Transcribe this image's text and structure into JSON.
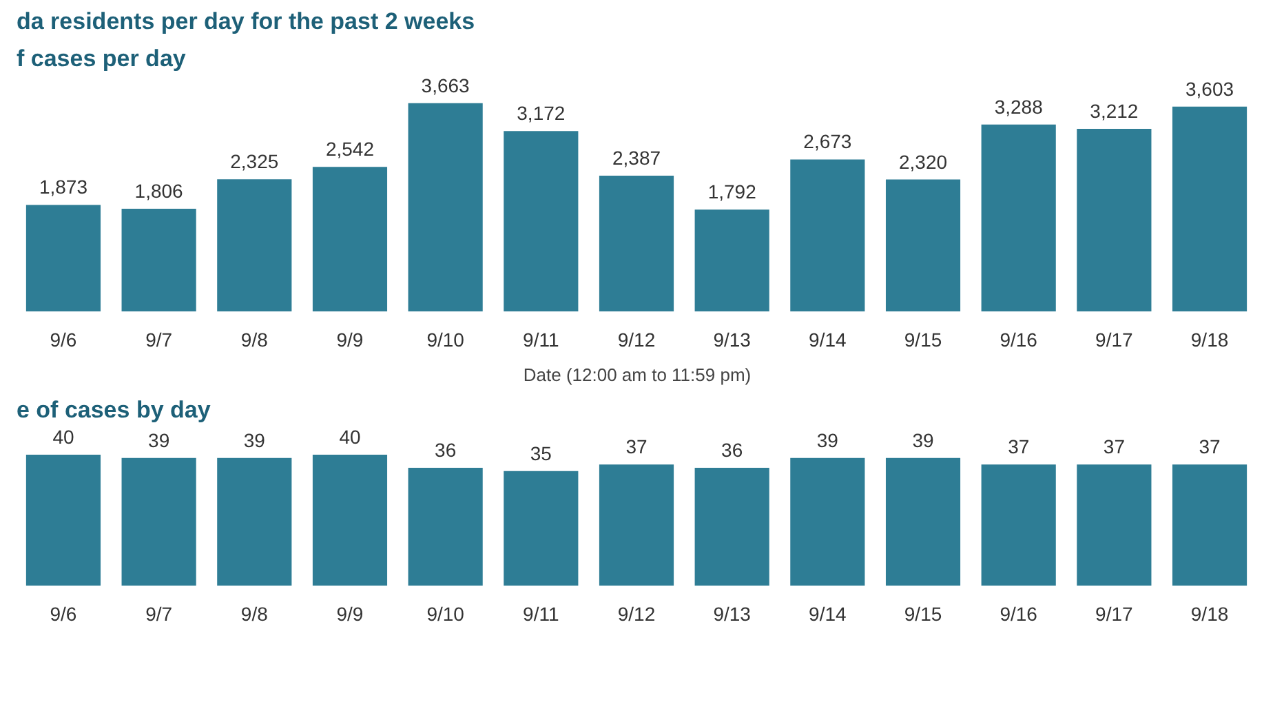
{
  "chart_data": [
    {
      "type": "bar",
      "title": "da residents per day for the past 2 weeks",
      "subtitle": "f cases per day",
      "xlabel": "Date (12:00 am to 11:59 pm)",
      "categories": [
        "9/6",
        "9/7",
        "9/8",
        "9/9",
        "9/10",
        "9/11",
        "9/12",
        "9/13",
        "9/14",
        "9/15",
        "9/16",
        "9/17",
        "9/18"
      ],
      "values": [
        1873,
        1806,
        2325,
        2542,
        3663,
        3172,
        2387,
        1792,
        2673,
        2320,
        3288,
        3212,
        3603
      ],
      "value_labels": [
        "1,873",
        "1,806",
        "2,325",
        "2,542",
        "3,663",
        "3,172",
        "2,387",
        "1,792",
        "2,673",
        "2,320",
        "3,288",
        "3,212",
        "3,603"
      ],
      "color": "#2e7d95"
    },
    {
      "type": "bar",
      "title": "e of cases by day",
      "categories": [
        "9/6",
        "9/7",
        "9/8",
        "9/9",
        "9/10",
        "9/11",
        "9/12",
        "9/13",
        "9/14",
        "9/15",
        "9/16",
        "9/17",
        "9/18"
      ],
      "values": [
        40,
        39,
        39,
        40,
        36,
        35,
        37,
        36,
        39,
        39,
        37,
        37,
        37
      ],
      "color": "#2e7d95",
      "data_labels": true
    }
  ]
}
